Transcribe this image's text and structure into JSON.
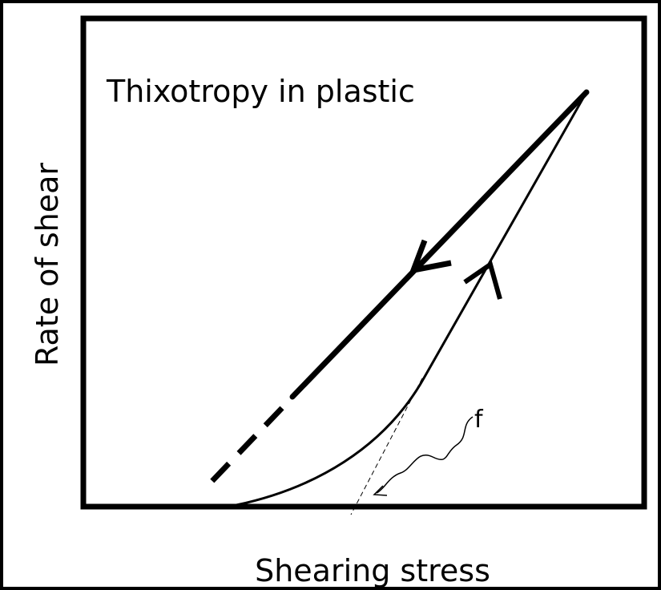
{
  "title": "Thixotropy in plastic",
  "y_axis_label": "Rate of shear",
  "x_axis_label": "Shearing stress",
  "annotation": "f"
}
